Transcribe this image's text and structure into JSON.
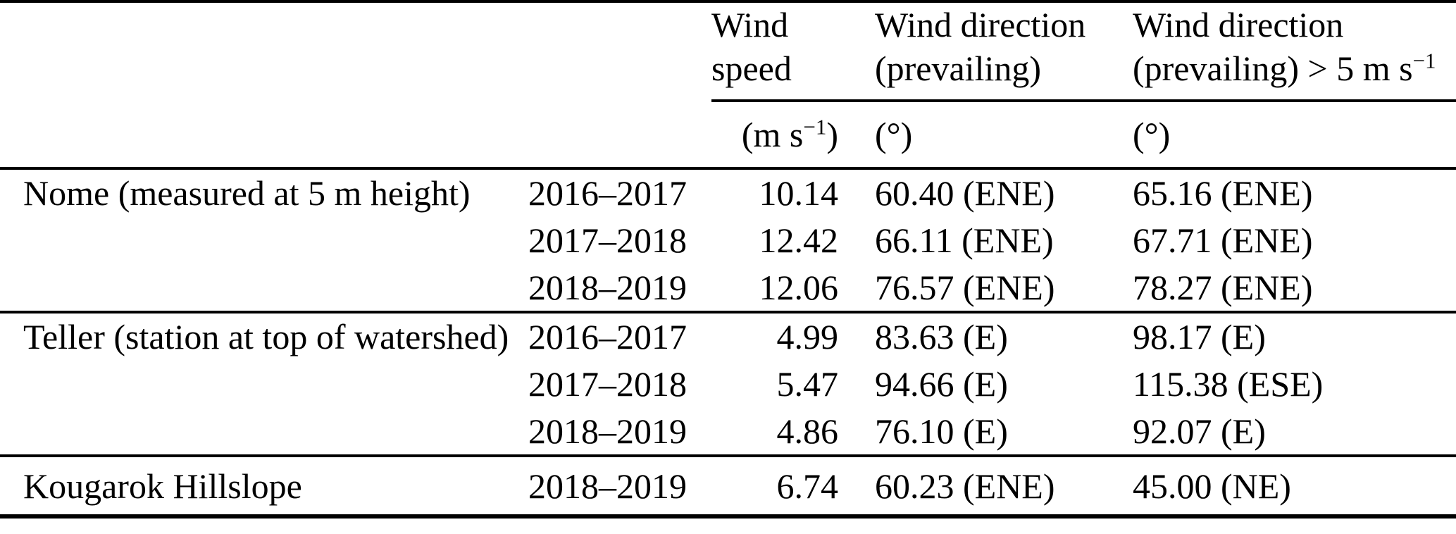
{
  "table": {
    "header": {
      "speed": {
        "line1": "Wind",
        "line2": "speed",
        "unit_pre": "(m s",
        "unit_sup": "−1",
        "unit_post": ")"
      },
      "direction": {
        "line1": "Wind direction",
        "line2": "(prevailing)",
        "unit": "(°)"
      },
      "direction_gt5": {
        "line1": "Wind direction",
        "line2_pre": "(prevailing) > 5 m s",
        "line2_sup": "−1",
        "unit": "(°)"
      }
    },
    "sections": [
      {
        "station": "Nome (measured at 5 m height)",
        "rows": [
          {
            "period": "2016–2017",
            "speed": "10.14",
            "dir": "60.40 (ENE)",
            "dir_gt5": "65.16 (ENE)"
          },
          {
            "period": "2017–2018",
            "speed": "12.42",
            "dir": "66.11 (ENE)",
            "dir_gt5": "67.71 (ENE)"
          },
          {
            "period": "2018–2019",
            "speed": "12.06",
            "dir": "76.57 (ENE)",
            "dir_gt5": "78.27 (ENE)"
          }
        ]
      },
      {
        "station": "Teller (station at top of watershed)",
        "rows": [
          {
            "period": "2016–2017",
            "speed": "4.99",
            "dir": "83.63 (E)",
            "dir_gt5": "98.17 (E)"
          },
          {
            "period": "2017–2018",
            "speed": "5.47",
            "dir": "94.66 (E)",
            "dir_gt5": "115.38 (ESE)"
          },
          {
            "period": "2018–2019",
            "speed": "4.86",
            "dir": "76.10 (E)",
            "dir_gt5": "92.07 (E)"
          }
        ]
      },
      {
        "station": "Kougarok Hillslope",
        "rows": [
          {
            "period": "2018–2019",
            "speed": "6.74",
            "dir": "60.23 (ENE)",
            "dir_gt5": "45.00 (NE)"
          }
        ]
      }
    ]
  }
}
